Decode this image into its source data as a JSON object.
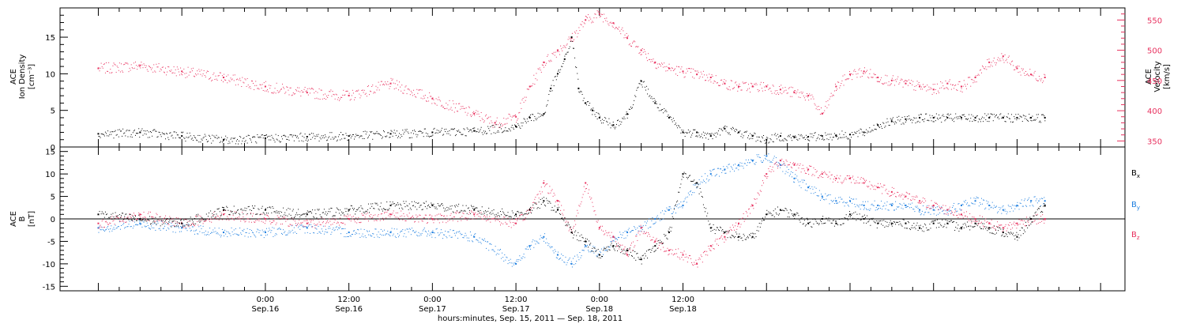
{
  "colors": {
    "black": "#000000",
    "pink": "#e8305e",
    "blue": "#1e7fe0"
  },
  "chart_data": [
    {
      "type": "scatter",
      "panel": "top",
      "ylabel_left": [
        "ACE",
        "Ion Density",
        "[cm⁻³]"
      ],
      "ylabel_right": [
        "ACE",
        "Velocity",
        "[km/s]"
      ],
      "ylim_left": [
        0,
        19
      ],
      "ylim_right": [
        340,
        570
      ],
      "yticks_left": [
        "0",
        "5",
        "10",
        "15"
      ],
      "yticks_right": [
        "350",
        "400",
        "450",
        "500",
        "550"
      ],
      "series": [
        {
          "axis": "left",
          "color": "black",
          "x": [
            -24,
            -18,
            -12,
            -6,
            0,
            6,
            12,
            18,
            24,
            30,
            36,
            38,
            40,
            41,
            42,
            43,
            44,
            45,
            46,
            47,
            48,
            50,
            52,
            54,
            56,
            58,
            60,
            62,
            64,
            66,
            68,
            70,
            72,
            74,
            76,
            78,
            80,
            82,
            84,
            86,
            88,
            90,
            92,
            94,
            96,
            98,
            100,
            102,
            104,
            106,
            108,
            110,
            112
          ],
          "y": [
            1.8,
            2.0,
            1.5,
            1.0,
            1.2,
            1.4,
            1.5,
            1.8,
            2.0,
            2.2,
            2.8,
            4.0,
            4.5,
            8,
            10,
            12,
            15,
            8,
            6,
            5,
            4,
            3,
            4.5,
            9,
            6,
            4,
            2,
            2,
            1.5,
            2.5,
            2,
            1.5,
            1,
            1.5,
            1.3,
            1.4,
            1.5,
            1.6,
            1.7,
            2,
            3,
            3.5,
            3.8,
            4,
            4,
            4,
            4,
            4,
            4,
            4,
            4,
            4,
            4
          ]
        },
        {
          "axis": "right",
          "color": "pink",
          "x": [
            -24,
            -18,
            -12,
            -6,
            0,
            6,
            12,
            18,
            24,
            30,
            33,
            36,
            38,
            40,
            42,
            44,
            46,
            48,
            50,
            52,
            54,
            56,
            58,
            60,
            62,
            64,
            66,
            68,
            70,
            72,
            74,
            76,
            78,
            80,
            82,
            84,
            86,
            88,
            90,
            92,
            94,
            96,
            98,
            100,
            102,
            104,
            106,
            108,
            110,
            112
          ],
          "y": [
            470,
            475,
            465,
            455,
            440,
            430,
            425,
            445,
            420,
            395,
            380,
            390,
            440,
            480,
            500,
            520,
            550,
            560,
            545,
            520,
            500,
            480,
            470,
            465,
            460,
            455,
            445,
            440,
            440,
            440,
            435,
            430,
            425,
            395,
            440,
            460,
            465,
            455,
            450,
            445,
            440,
            435,
            445,
            440,
            455,
            480,
            490,
            470,
            460,
            455
          ]
        }
      ]
    },
    {
      "type": "scatter",
      "panel": "bottom",
      "ylabel": [
        "ACE",
        "B",
        "[nT]"
      ],
      "ylim": [
        -16,
        16
      ],
      "yticks": [
        "-15",
        "-10",
        "-5",
        "0",
        "5",
        "10",
        "15"
      ],
      "xtick_labels": [
        {
          "time": "0:00",
          "date": "Sep.16"
        },
        {
          "time": "12:00",
          "date": "Sep.16"
        },
        {
          "time": "0:00",
          "date": "Sep.17"
        },
        {
          "time": "12:00",
          "date": "Sep.17"
        },
        {
          "time": "0:00",
          "date": "Sep.18"
        },
        {
          "time": "12:00",
          "date": "Sep.18"
        }
      ],
      "xlabel": "hours:minutes, Sep. 15, 2011 — Sep. 18, 2011",
      "series": [
        {
          "name": "Bx",
          "color": "black",
          "x": [
            -24,
            -18,
            -12,
            -6,
            0,
            6,
            12,
            18,
            24,
            30,
            36,
            38,
            40,
            42,
            44,
            46,
            48,
            50,
            52,
            54,
            56,
            58,
            60,
            62,
            64,
            66,
            68,
            70,
            72,
            74,
            76,
            78,
            80,
            82,
            84,
            86,
            88,
            90,
            92,
            94,
            96,
            98,
            100,
            102,
            104,
            106,
            108,
            110,
            112
          ],
          "y": [
            1,
            0,
            -1,
            2,
            2,
            1,
            2,
            3,
            3,
            2,
            1,
            2,
            4,
            2,
            -3,
            -5,
            -8,
            -6,
            -7,
            -9,
            -6,
            -3,
            10,
            8,
            -2,
            -3,
            -4,
            -4,
            1,
            2,
            1,
            -1,
            0,
            -1,
            1,
            0,
            -1,
            -1,
            -1,
            -2,
            -1,
            -1,
            -2,
            -1,
            -2,
            -3,
            -4,
            0,
            3
          ]
        },
        {
          "name": "By",
          "color": "blue",
          "x": [
            -24,
            -18,
            -12,
            -6,
            0,
            6,
            12,
            18,
            24,
            30,
            36,
            38,
            40,
            42,
            44,
            46,
            48,
            50,
            52,
            54,
            56,
            58,
            60,
            62,
            64,
            66,
            68,
            70,
            72,
            74,
            76,
            78,
            80,
            82,
            84,
            86,
            88,
            90,
            92,
            94,
            96,
            98,
            100,
            102,
            104,
            106,
            108,
            110,
            112
          ],
          "y": [
            -2,
            -1,
            -2,
            -3,
            -3,
            -2,
            -3,
            -3,
            -3,
            -4,
            -10,
            -6,
            -4,
            -8,
            -10,
            -6,
            -8,
            -4,
            -3,
            -2,
            0,
            2,
            3,
            8,
            10,
            11,
            12,
            13,
            14,
            12,
            9,
            7,
            5,
            4,
            4,
            3,
            3,
            3,
            3,
            2,
            2,
            2,
            3,
            4,
            3,
            2,
            3,
            4,
            4
          ]
        },
        {
          "name": "Bz",
          "color": "pink",
          "x": [
            -24,
            -18,
            -12,
            -6,
            0,
            6,
            12,
            18,
            24,
            30,
            36,
            38,
            40,
            42,
            44,
            46,
            48,
            50,
            52,
            54,
            56,
            58,
            60,
            62,
            64,
            66,
            68,
            70,
            72,
            74,
            76,
            78,
            80,
            82,
            84,
            86,
            88,
            90,
            92,
            94,
            96,
            98,
            100,
            102,
            104,
            106,
            108,
            110,
            112
          ],
          "y": [
            -1,
            1,
            -1,
            1,
            0,
            -1,
            0,
            1,
            0,
            1,
            -1,
            2,
            8,
            4,
            -3,
            8,
            -2,
            -4,
            -8,
            -2,
            -5,
            -7,
            -8,
            -10,
            -6,
            -4,
            -1,
            3,
            10,
            13,
            12,
            11,
            10,
            9,
            9,
            8,
            7,
            6,
            5,
            4,
            3,
            2,
            1,
            0,
            -1,
            -2,
            -1,
            0,
            0
          ]
        }
      ],
      "legend": [
        {
          "label": "B",
          "sub": "x",
          "color": "black"
        },
        {
          "label": "B",
          "sub": "y",
          "color": "blue"
        },
        {
          "label": "B",
          "sub": "z",
          "color": "pink"
        }
      ]
    }
  ]
}
